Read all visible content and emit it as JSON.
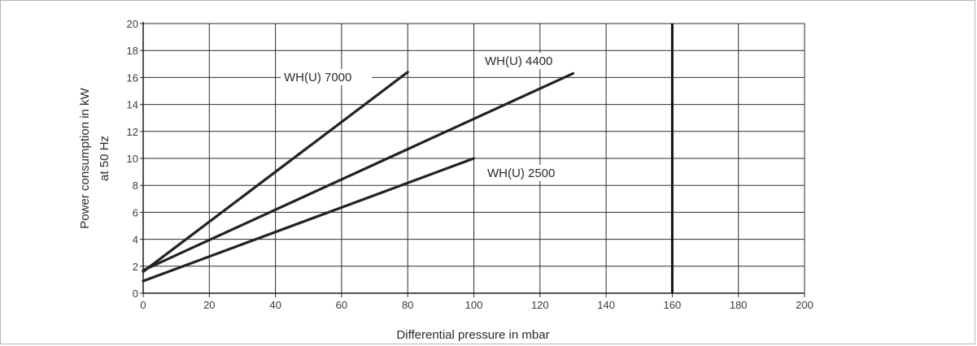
{
  "chart_data": {
    "type": "line",
    "title": "",
    "xlabel": "Differential pressure in mbar",
    "ylabel_lines": [
      "Power consumption in kW",
      "at 50 Hz"
    ],
    "xlim": [
      0,
      200
    ],
    "ylim": [
      0,
      20
    ],
    "x_ticks": [
      "0",
      "20",
      "40",
      "60",
      "80",
      "100",
      "120",
      "140",
      "160",
      "180",
      "200"
    ],
    "y_ticks": [
      "0",
      "2",
      "4",
      "6",
      "8",
      "10",
      "12",
      "14",
      "16",
      "18",
      "20"
    ],
    "grid": true,
    "limit_line_x": 160,
    "series": [
      {
        "name": "WH(U) 7000",
        "x": [
          0,
          80
        ],
        "y": [
          1.6,
          16.4
        ]
      },
      {
        "name": "WH(U) 4400",
        "x": [
          0,
          130
        ],
        "y": [
          1.7,
          16.3
        ]
      },
      {
        "name": "WH(U) 2500",
        "x": [
          0,
          100
        ],
        "y": [
          0.9,
          10.0
        ]
      }
    ]
  }
}
